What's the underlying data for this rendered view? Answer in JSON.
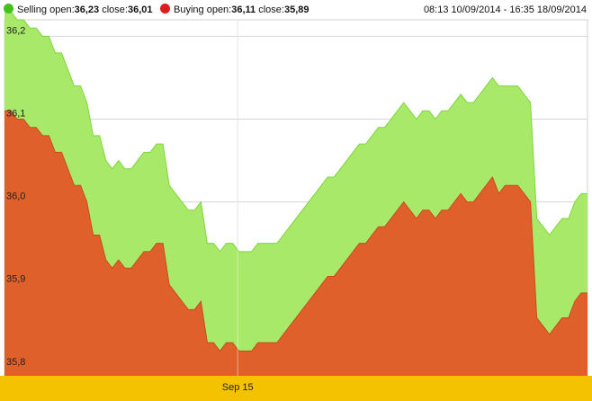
{
  "legend": {
    "selling": {
      "label": "Selling",
      "open_label": "open:",
      "open_value": "36,23",
      "close_label": "close:",
      "close_value": "36,01",
      "color": "#44c21c"
    },
    "buying": {
      "label": "Buying",
      "open_label": "open:",
      "open_value": "36,11",
      "close_label": "close:",
      "close_value": "35,89",
      "color": "#e01b1b"
    },
    "date_range": "08:13 10/09/2014 - 16:35 18/09/2014"
  },
  "chart_data": {
    "type": "area",
    "title": "",
    "xlabel": "",
    "ylabel": "",
    "ylim": [
      35.79,
      36.22
    ],
    "yticks": [
      {
        "value": 35.8,
        "label": "35,8"
      },
      {
        "value": 35.9,
        "label": "35,9"
      },
      {
        "value": 36.0,
        "label": "36,0"
      },
      {
        "value": 36.1,
        "label": "36,1"
      },
      {
        "value": 36.2,
        "label": "36,2"
      }
    ],
    "xticks": [
      {
        "index": 36.8,
        "label": "Sep 15"
      }
    ],
    "grid": true,
    "legend_position": "top",
    "series": [
      {
        "name": "Selling",
        "fill": "#a8e96a",
        "stroke": "#7ed63a",
        "values": [
          36.23,
          36.23,
          36.22,
          36.22,
          36.21,
          36.21,
          36.2,
          36.2,
          36.18,
          36.18,
          36.16,
          36.14,
          36.14,
          36.12,
          36.08,
          36.08,
          36.05,
          36.04,
          36.05,
          36.04,
          36.04,
          36.05,
          36.06,
          36.06,
          36.07,
          36.07,
          36.02,
          36.01,
          36.0,
          35.99,
          35.99,
          36.0,
          35.95,
          35.95,
          35.94,
          35.95,
          35.95,
          35.94,
          35.94,
          35.94,
          35.95,
          35.95,
          35.95,
          35.95,
          35.96,
          35.97,
          35.98,
          35.99,
          36.0,
          36.01,
          36.02,
          36.03,
          36.03,
          36.04,
          36.05,
          36.06,
          36.07,
          36.07,
          36.08,
          36.09,
          36.09,
          36.1,
          36.11,
          36.12,
          36.11,
          36.1,
          36.11,
          36.11,
          36.1,
          36.11,
          36.11,
          36.12,
          36.13,
          36.12,
          36.12,
          36.13,
          36.14,
          36.15,
          36.14,
          36.14,
          36.14,
          36.14,
          36.13,
          36.12,
          35.98,
          35.97,
          35.96,
          35.97,
          35.98,
          35.98,
          36.0,
          36.01,
          36.01
        ]
      },
      {
        "name": "Buying",
        "fill": "#e0602c",
        "stroke": "#c94a1c",
        "values": [
          36.11,
          36.11,
          36.1,
          36.1,
          36.09,
          36.09,
          36.08,
          36.08,
          36.06,
          36.06,
          36.04,
          36.02,
          36.02,
          36.0,
          35.96,
          35.96,
          35.93,
          35.92,
          35.93,
          35.92,
          35.92,
          35.93,
          35.94,
          35.94,
          35.95,
          35.95,
          35.9,
          35.89,
          35.88,
          35.87,
          35.87,
          35.88,
          35.83,
          35.83,
          35.82,
          35.83,
          35.83,
          35.82,
          35.82,
          35.82,
          35.83,
          35.83,
          35.83,
          35.83,
          35.84,
          35.85,
          35.86,
          35.87,
          35.88,
          35.89,
          35.9,
          35.91,
          35.91,
          35.92,
          35.93,
          35.94,
          35.95,
          35.95,
          35.96,
          35.97,
          35.97,
          35.98,
          35.99,
          36.0,
          35.99,
          35.98,
          35.99,
          35.99,
          35.98,
          35.99,
          35.99,
          36.0,
          36.01,
          36.0,
          36.0,
          36.01,
          36.02,
          36.03,
          36.01,
          36.02,
          36.02,
          36.02,
          36.01,
          36.0,
          35.86,
          35.85,
          35.84,
          35.85,
          35.86,
          35.86,
          35.88,
          35.89,
          35.89
        ]
      }
    ]
  }
}
